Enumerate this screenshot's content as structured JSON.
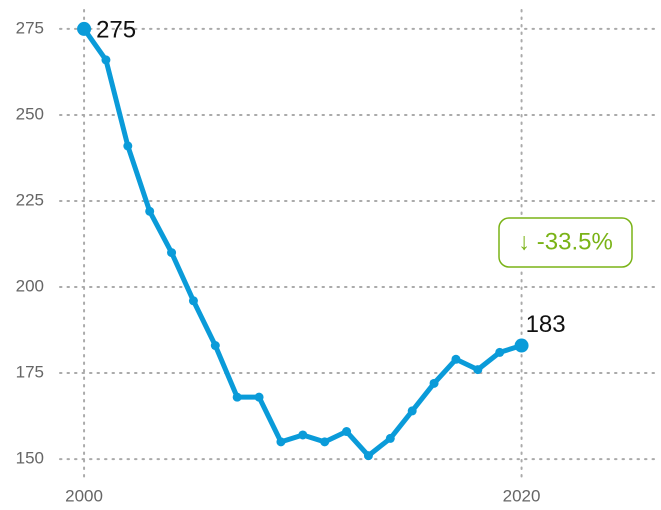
{
  "chart_data": {
    "type": "line",
    "x": [
      2000,
      2001,
      2002,
      2003,
      2004,
      2005,
      2006,
      2007,
      2008,
      2009,
      2010,
      2011,
      2012,
      2013,
      2014,
      2015,
      2016,
      2017,
      2018,
      2019,
      2020
    ],
    "series": [
      {
        "color": "#0a9bd9",
        "values": [
          275,
          266,
          241,
          222,
          210,
          196,
          183,
          168,
          168,
          155,
          157,
          155,
          158,
          151,
          156,
          164,
          172,
          179,
          176,
          181,
          183
        ]
      }
    ],
    "xlim": [
      1998.9,
      2026.1
    ],
    "xticks": [
      2000,
      2020
    ],
    "ylim": [
      144.5,
      280.5
    ],
    "yticks": [
      150,
      175,
      200,
      225,
      250,
      275
    ],
    "grid": true,
    "annotation": "↓ -33.5%",
    "annotation_color": "#7ab317"
  }
}
